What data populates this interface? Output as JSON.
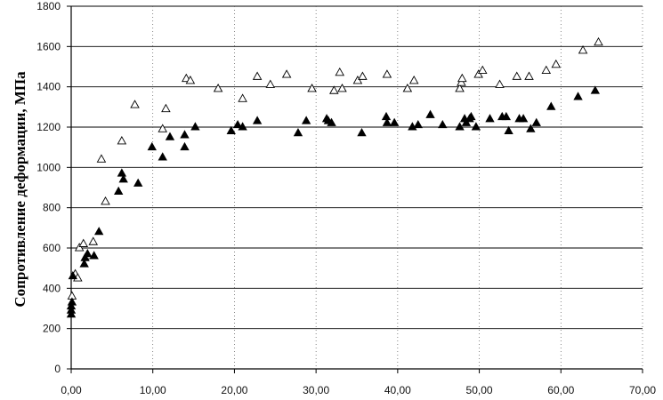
{
  "chart_data": {
    "type": "scatter",
    "title": "",
    "xlabel": "",
    "ylabel": "Сопротивление деформации, МПа",
    "xlim": [
      0,
      70
    ],
    "ylim": [
      0,
      1800
    ],
    "x_ticks": [
      "0,00",
      "10,00",
      "20,00",
      "30,00",
      "40,00",
      "50,00",
      "60,00",
      "70,00"
    ],
    "y_ticks": [
      "0",
      "200",
      "400",
      "600",
      "800",
      "1000",
      "1200",
      "1400",
      "1600",
      "1800"
    ],
    "grid": "horizontal major lines, dotted vertical lines",
    "legend": "none",
    "series": [
      {
        "marker": "open-triangle",
        "color": "#000000",
        "points": [
          [
            0.1,
            360
          ],
          [
            0.5,
            470
          ],
          [
            0.8,
            450
          ],
          [
            1.0,
            600
          ],
          [
            1.5,
            620
          ],
          [
            2.0,
            560
          ],
          [
            2.7,
            630
          ],
          [
            3.7,
            1040
          ],
          [
            4.2,
            830
          ],
          [
            6.2,
            1130
          ],
          [
            7.8,
            1310
          ],
          [
            11.2,
            1190
          ],
          [
            11.6,
            1290
          ],
          [
            14.1,
            1440
          ],
          [
            14.6,
            1430
          ],
          [
            18.0,
            1390
          ],
          [
            21.0,
            1340
          ],
          [
            22.8,
            1450
          ],
          [
            24.4,
            1410
          ],
          [
            26.4,
            1460
          ],
          [
            29.5,
            1390
          ],
          [
            32.2,
            1380
          ],
          [
            32.9,
            1470
          ],
          [
            33.2,
            1390
          ],
          [
            35.1,
            1430
          ],
          [
            35.7,
            1450
          ],
          [
            38.7,
            1460
          ],
          [
            41.2,
            1390
          ],
          [
            42.0,
            1430
          ],
          [
            47.6,
            1390
          ],
          [
            47.8,
            1420
          ],
          [
            47.9,
            1440
          ],
          [
            49.9,
            1460
          ],
          [
            50.4,
            1480
          ],
          [
            52.5,
            1410
          ],
          [
            54.6,
            1450
          ],
          [
            56.1,
            1450
          ],
          [
            58.2,
            1480
          ],
          [
            59.4,
            1510
          ],
          [
            62.7,
            1580
          ],
          [
            64.6,
            1620
          ]
        ]
      },
      {
        "marker": "filled-triangle",
        "color": "#000000",
        "points": [
          [
            0.0,
            270
          ],
          [
            0.0,
            290
          ],
          [
            0.0,
            310
          ],
          [
            0.1,
            330
          ],
          [
            0.2,
            460
          ],
          [
            1.6,
            520
          ],
          [
            1.7,
            550
          ],
          [
            2.0,
            570
          ],
          [
            2.8,
            560
          ],
          [
            3.4,
            680
          ],
          [
            5.8,
            880
          ],
          [
            6.2,
            970
          ],
          [
            6.4,
            940
          ],
          [
            8.2,
            920
          ],
          [
            9.9,
            1100
          ],
          [
            11.2,
            1050
          ],
          [
            12.1,
            1150
          ],
          [
            13.9,
            1100
          ],
          [
            13.9,
            1160
          ],
          [
            15.2,
            1200
          ],
          [
            19.6,
            1180
          ],
          [
            20.4,
            1210
          ],
          [
            21.0,
            1200
          ],
          [
            22.8,
            1230
          ],
          [
            27.8,
            1170
          ],
          [
            28.8,
            1230
          ],
          [
            31.3,
            1240
          ],
          [
            31.5,
            1230
          ],
          [
            31.9,
            1220
          ],
          [
            35.6,
            1170
          ],
          [
            38.6,
            1250
          ],
          [
            38.7,
            1220
          ],
          [
            39.6,
            1220
          ],
          [
            41.8,
            1200
          ],
          [
            42.5,
            1210
          ],
          [
            44.0,
            1260
          ],
          [
            45.5,
            1210
          ],
          [
            47.6,
            1200
          ],
          [
            48.2,
            1240
          ],
          [
            48.4,
            1220
          ],
          [
            48.8,
            1240
          ],
          [
            49.0,
            1250
          ],
          [
            49.6,
            1200
          ],
          [
            51.3,
            1240
          ],
          [
            52.8,
            1250
          ],
          [
            53.3,
            1250
          ],
          [
            53.6,
            1180
          ],
          [
            54.9,
            1240
          ],
          [
            55.4,
            1240
          ],
          [
            56.3,
            1190
          ],
          [
            57.0,
            1220
          ],
          [
            58.8,
            1300
          ],
          [
            62.1,
            1350
          ],
          [
            64.2,
            1380
          ]
        ]
      }
    ]
  }
}
